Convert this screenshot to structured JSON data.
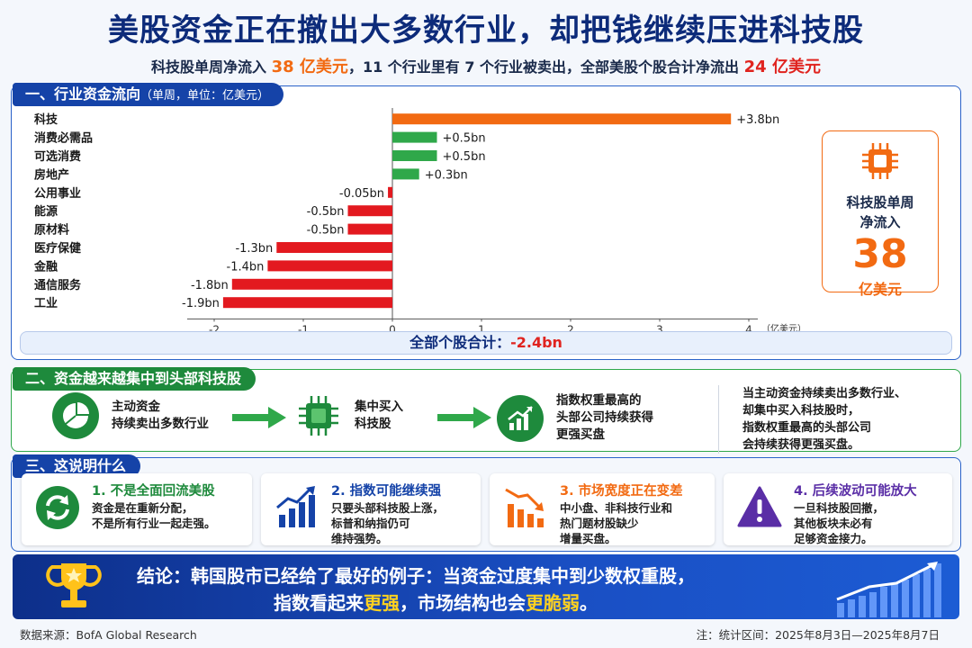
{
  "header": {
    "title": "美股资金正在撤出大多数行业，却把钱继续压进科技股",
    "subtitle_part1": "科技股单周净流入 ",
    "subtitle_hl1": "38 亿美元",
    "subtitle_part2": "，11 个行业里有 7 个行业被卖出，全部美股个股合计净流出 ",
    "subtitle_hl2": "24 亿美元"
  },
  "section1": {
    "label": "一、行业资金流向",
    "label_unit": "（单周，单位：亿美元）",
    "total_label": "全部个股合计：",
    "total_value": "-2.4bn"
  },
  "inflow_card": {
    "label_line1": "科技股单周",
    "label_line2": "净流入",
    "value": "38",
    "unit": "亿美元"
  },
  "chart_data": {
    "type": "bar",
    "orientation": "horizontal",
    "categories": [
      "科技",
      "消费必需品",
      "可选消费",
      "房地产",
      "公用事业",
      "能源",
      "原材料",
      "医疗保健",
      "金融",
      "通信服务",
      "工业"
    ],
    "values": [
      3.8,
      0.5,
      0.5,
      0.3,
      -0.05,
      -0.5,
      -0.5,
      -1.3,
      -1.4,
      -1.8,
      -1.9
    ],
    "data_labels": [
      "+3.8bn",
      "+0.5bn",
      "+0.5bn",
      "+0.3bn",
      "-0.05bn",
      "-0.5bn",
      "-0.5bn",
      "-1.3bn",
      "-1.4bn",
      "-1.8bn",
      "-1.9bn"
    ],
    "xlim": [
      -2,
      4
    ],
    "xticks": [
      "-2",
      "-1",
      "0",
      "1",
      "2",
      "3",
      "4"
    ],
    "xticks_values": [
      -2,
      -1,
      0,
      1,
      2,
      3,
      4
    ],
    "xlabel": "（亿美元）",
    "colors": {
      "highlight": "#f26a12",
      "positive": "#2fa84a",
      "negative": "#e3191f"
    }
  },
  "section2": {
    "label": "二、资金越来越集中到头部科技股",
    "step1_line1": "主动资金",
    "step1_line2": "持续卖出多数行业",
    "step2_line1": "集中买入",
    "step2_line2": "科技股",
    "step3_line1": "指数权重最高的",
    "step3_line2": "头部公司持续获得",
    "step3_line3": "更强买盘",
    "note_line1": "当主动资金持续卖出多数行业、",
    "note_line2": "却集中买入科技股时，",
    "note_line3": "指数权重最高的头部公司",
    "note_line4": "会持续获得更强买盘。"
  },
  "section3": {
    "label": "三、这说明什么",
    "cards": [
      {
        "title": "1. 不是全面回流美股",
        "line1": "资金是在重新分配，",
        "line2": "不是所有行业一起走强。",
        "line3": "",
        "color": "#1e8a3c"
      },
      {
        "title": "2. 指数可能继续强",
        "line1": "只要头部科技股上涨，",
        "line2": "标普和纳指仍可",
        "line3": "维持强势。",
        "color": "#1543a8"
      },
      {
        "title": "3. 市场宽度正在变差",
        "line1": "中小盘、非科技行业和",
        "line2": "热门题材股缺少",
        "line3": "增量买盘。",
        "color": "#f26a12"
      },
      {
        "title": "4. 后续波动可能放大",
        "line1": "一旦科技股回撤，",
        "line2": "其他板块未必有",
        "line3": "足够资金接力。",
        "color": "#5a2ea6"
      }
    ]
  },
  "conclusion": {
    "line1": "结论：韩国股市已经给了最好的例子：当资金过度集中到少数权重股，",
    "line2_a": "指数看起来",
    "line2_hl1": "更强",
    "line2_b": "，市场结构也会",
    "line2_hl2": "更脆弱",
    "line2_c": "。"
  },
  "footer": {
    "source": "数据来源：BofA Global Research",
    "note": "注：统计区间：2025年8月3日—2025年8月7日"
  }
}
